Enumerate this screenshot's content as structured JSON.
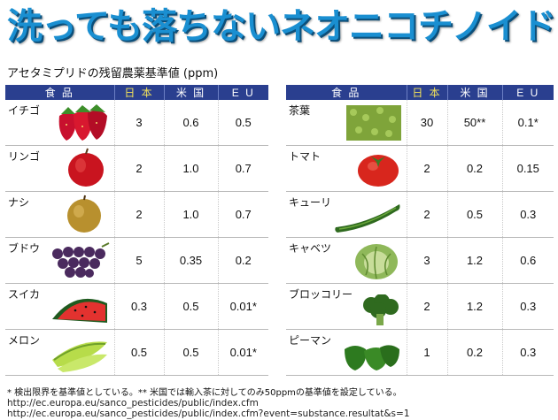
{
  "title": "洗っても落ちないネオニコチノイド",
  "subtitle": "アセタミプリドの残留農薬基準値 (ppm)",
  "headers": {
    "food": "食 品",
    "japan": "日 本",
    "usa": "米 国",
    "eu": "E U"
  },
  "left_rows": [
    {
      "food": "イチゴ",
      "icon": "strawberry-icon",
      "japan": "3",
      "usa": "0.6",
      "eu": "0.5"
    },
    {
      "food": "リンゴ",
      "icon": "apple-icon",
      "japan": "2",
      "usa": "1.0",
      "eu": "0.7"
    },
    {
      "food": "ナシ",
      "icon": "pear-icon",
      "japan": "2",
      "usa": "1.0",
      "eu": "0.7"
    },
    {
      "food": "ブドウ",
      "icon": "grape-icon",
      "japan": "5",
      "usa": "0.35",
      "eu": "0.2"
    },
    {
      "food": "スイカ",
      "icon": "watermelon-icon",
      "japan": "0.3",
      "usa": "0.5",
      "eu": "0.01*"
    },
    {
      "food": "メロン",
      "icon": "melon-icon",
      "japan": "0.5",
      "usa": "0.5",
      "eu": "0.01*"
    }
  ],
  "right_rows": [
    {
      "food": "茶葉",
      "icon": "tea-leaves-icon",
      "japan": "30",
      "usa": "50**",
      "eu": "0.1*"
    },
    {
      "food": "トマト",
      "icon": "tomato-icon",
      "japan": "2",
      "usa": "0.2",
      "eu": "0.15"
    },
    {
      "food": "キューリ",
      "icon": "cucumber-icon",
      "japan": "2",
      "usa": "0.5",
      "eu": "0.3"
    },
    {
      "food": "キャベツ",
      "icon": "cabbage-icon",
      "japan": "3",
      "usa": "1.2",
      "eu": "0.6"
    },
    {
      "food": "ブロッコリー",
      "icon": "broccoli-icon",
      "japan": "2",
      "usa": "1.2",
      "eu": "0.3"
    },
    {
      "food": "ピーマン",
      "icon": "green-pepper-icon",
      "japan": "1",
      "usa": "0.2",
      "eu": "0.3"
    }
  ],
  "footnote": "* 検出限界を基準値としている。** 米国では輸入茶に対してのみ50ppmの基準値を設定している。",
  "urls": [
    "http://ec.europa.eu/sanco_pesticides/public/index.cfm",
    "http://ec.europa.eu/sanco_pesticides/public/index.cfm?event=substance.resultat&s=1"
  ],
  "colors": {
    "title": "#1a8fd1",
    "header_bg": "#2a3f8f",
    "japan_header": "#f3e25a"
  }
}
